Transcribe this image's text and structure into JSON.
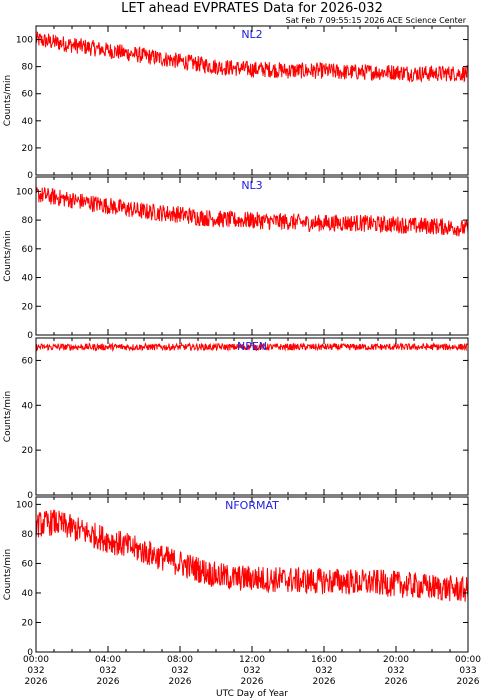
{
  "header": {
    "title": "LET ahead EVPRATES Data for 2026-032",
    "timestamp": "Sat Feb  7 09:55:15 2026 ACE Science Center"
  },
  "colors": {
    "series": "#ff0000",
    "panel_label": "#2020e0",
    "axis": "#000000"
  },
  "chart_data": [
    {
      "type": "line",
      "panel_label": "NL2",
      "ylabel": "Counts/min",
      "ylim": [
        0,
        110
      ],
      "yticks": [
        0,
        20,
        40,
        60,
        80,
        100
      ],
      "xlim_hours": [
        0,
        24
      ],
      "series": [
        {
          "name": "NL2",
          "x_hours": [
            0,
            1,
            2,
            3,
            4,
            5,
            6,
            7,
            8,
            9,
            10,
            11,
            12,
            13,
            14,
            15,
            16,
            17,
            18,
            19,
            20,
            21,
            22,
            23,
            24
          ],
          "values": [
            100,
            98,
            96,
            94,
            92,
            90,
            88,
            86,
            84,
            82,
            80,
            79,
            78,
            78,
            77,
            77,
            77,
            76,
            76,
            76,
            76,
            75,
            75,
            75,
            75
          ],
          "noise": 6
        }
      ]
    },
    {
      "type": "line",
      "panel_label": "NL3",
      "ylabel": "Counts/min",
      "ylim": [
        0,
        110
      ],
      "yticks": [
        0,
        20,
        40,
        60,
        80,
        100
      ],
      "xlim_hours": [
        0,
        24
      ],
      "series": [
        {
          "name": "NL3",
          "x_hours": [
            0,
            1,
            2,
            3,
            4,
            5,
            6,
            7,
            8,
            9,
            10,
            11,
            12,
            13,
            14,
            15,
            16,
            17,
            18,
            19,
            20,
            21,
            22,
            23,
            24
          ],
          "values": [
            98,
            96,
            94,
            92,
            90,
            88,
            86,
            85,
            84,
            82,
            81,
            80,
            80,
            79,
            79,
            78,
            78,
            78,
            78,
            77,
            77,
            76,
            76,
            75,
            74
          ],
          "noise": 6
        }
      ]
    },
    {
      "type": "line",
      "panel_label": "NPEN",
      "ylabel": "Counts/min",
      "ylim": [
        0,
        70
      ],
      "yticks": [
        0,
        20,
        40,
        60
      ],
      "xlim_hours": [
        0,
        24
      ],
      "series": [
        {
          "name": "NPEN",
          "x_hours": [
            0,
            4,
            8,
            12,
            16,
            20,
            24
          ],
          "values": [
            66,
            66,
            66,
            66,
            66,
            66,
            66
          ],
          "noise": 1.5
        }
      ]
    },
    {
      "type": "line",
      "panel_label": "NFORMAT",
      "ylabel": "Counts/min",
      "ylim": [
        0,
        105
      ],
      "yticks": [
        0,
        20,
        40,
        60,
        80,
        100
      ],
      "xlim_hours": [
        0,
        24
      ],
      "xticks": [
        {
          "hour": 0,
          "time": "00:00",
          "doy": "032",
          "year": "2026"
        },
        {
          "hour": 4,
          "time": "04:00",
          "doy": "032",
          "year": "2026"
        },
        {
          "hour": 8,
          "time": "08:00",
          "doy": "032",
          "year": "2026"
        },
        {
          "hour": 12,
          "time": "12:00",
          "doy": "032",
          "year": "2026"
        },
        {
          "hour": 16,
          "time": "16:00",
          "doy": "032",
          "year": "2026"
        },
        {
          "hour": 20,
          "time": "20:00",
          "doy": "032",
          "year": "2026"
        },
        {
          "hour": 24,
          "time": "00:00",
          "doy": "033",
          "year": "2026"
        }
      ],
      "xlabel": "UTC Day of Year",
      "series": [
        {
          "name": "NFORMAT",
          "x_hours": [
            0,
            1,
            2,
            3,
            4,
            5,
            6,
            7,
            8,
            9,
            10,
            11,
            12,
            13,
            14,
            15,
            16,
            17,
            18,
            19,
            20,
            21,
            22,
            23,
            24
          ],
          "values": [
            86,
            88,
            84,
            80,
            76,
            72,
            68,
            64,
            60,
            56,
            52,
            50,
            50,
            49,
            49,
            48,
            48,
            48,
            47,
            47,
            46,
            45,
            44,
            43,
            42
          ],
          "noise": 9
        }
      ]
    }
  ]
}
